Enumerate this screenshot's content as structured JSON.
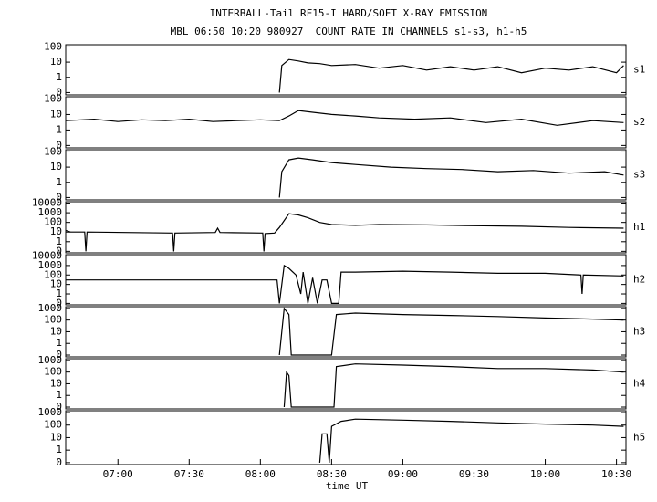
{
  "chart_data": {
    "type": "line",
    "title": "INTERBALL-Tail RF15-I HARD/SOFT X-RAY EMISSION",
    "subtitle": "MBL 06:50 10:20 980927  COUNT RATE IN CHANNELS s1-s3, h1-h5",
    "x_label": "time UT",
    "xlim": [
      398,
      634
    ],
    "xticks": [
      {
        "value": 420,
        "label": "07:00"
      },
      {
        "value": 450,
        "label": "07:30"
      },
      {
        "value": 480,
        "label": "08:00"
      },
      {
        "value": 510,
        "label": "08:30"
      },
      {
        "value": 540,
        "label": "09:00"
      },
      {
        "value": 570,
        "label": "09:30"
      },
      {
        "value": 600,
        "label": "10:00"
      },
      {
        "value": 630,
        "label": "10:30"
      }
    ],
    "log_scale": true,
    "color": "#000000",
    "panels": [
      {
        "name": "s1",
        "ylim": [
          0.07,
          140
        ],
        "yticks": [
          {
            "value": 0.1,
            "label": "0"
          },
          1,
          10,
          100
        ],
        "x": [
          488,
          489,
          492,
          496,
          500,
          505,
          510,
          520,
          530,
          540,
          550,
          560,
          570,
          580,
          590,
          600,
          610,
          620,
          630,
          633
        ],
        "values": [
          0.1,
          6,
          15,
          12,
          9,
          8,
          6,
          7,
          4,
          6,
          3,
          5,
          3,
          5,
          2,
          4,
          3,
          5,
          2,
          6
        ]
      },
      {
        "name": "s2",
        "ylim": [
          0.07,
          140
        ],
        "yticks": [
          {
            "value": 0.1,
            "label": "0"
          },
          1,
          10,
          100
        ],
        "x": [
          398,
          410,
          420,
          430,
          440,
          450,
          460,
          470,
          480,
          488,
          492,
          496,
          502,
          510,
          520,
          530,
          545,
          560,
          575,
          590,
          605,
          620,
          633
        ],
        "values": [
          4,
          5,
          3.5,
          4.5,
          4,
          5,
          3.5,
          4,
          4.5,
          4,
          8,
          18,
          14,
          10,
          8,
          6,
          5,
          6,
          3,
          5,
          2,
          4,
          3
        ]
      },
      {
        "name": "s3",
        "ylim": [
          0.07,
          140
        ],
        "yticks": [
          {
            "value": 0.1,
            "label": "0"
          },
          1,
          10,
          100
        ],
        "x": [
          488,
          489,
          492,
          496,
          502,
          510,
          520,
          535,
          550,
          565,
          580,
          595,
          610,
          625,
          633
        ],
        "values": [
          0.1,
          5,
          30,
          40,
          30,
          20,
          15,
          10,
          8,
          7,
          5,
          6,
          4,
          5,
          3
        ]
      },
      {
        "name": "h1",
        "ylim": [
          0.07,
          14000
        ],
        "yticks": [
          {
            "value": 0.1,
            "label": "0"
          },
          1,
          10,
          100,
          1000,
          10000
        ],
        "x": [
          398,
          400,
          406,
          406.5,
          407,
          443,
          443.5,
          444,
          461,
          462,
          463,
          481,
          481.5,
          482,
          486,
          488,
          492,
          496,
          500,
          505,
          510,
          520,
          530,
          550,
          570,
          590,
          610,
          633
        ],
        "values": [
          15,
          10,
          10,
          0.1,
          10,
          8,
          0.1,
          8,
          9,
          25,
          9,
          8,
          0.1,
          7,
          8,
          30,
          800,
          600,
          300,
          100,
          60,
          50,
          60,
          55,
          45,
          40,
          30,
          25
        ]
      },
      {
        "name": "h2",
        "ylim": [
          0.07,
          14000
        ],
        "yticks": [
          {
            "value": 0.1,
            "label": "0"
          },
          1,
          10,
          100,
          1000,
          10000
        ],
        "x": [
          398,
          487,
          488,
          490,
          492,
          495,
          497,
          498,
          500,
          502,
          504,
          506,
          508,
          510,
          513,
          514,
          520,
          540,
          560,
          580,
          600,
          615,
          615.5,
          616,
          633
        ],
        "values": [
          30,
          30,
          0.1,
          1000,
          500,
          100,
          1,
          200,
          0.1,
          50,
          0.1,
          30,
          30,
          0.1,
          0.1,
          200,
          200,
          250,
          200,
          150,
          150,
          100,
          1,
          100,
          80
        ]
      },
      {
        "name": "h3",
        "ylim": [
          0.07,
          1400
        ],
        "yticks": [
          {
            "value": 0.1,
            "label": "0"
          },
          1,
          10,
          100,
          1000
        ],
        "x": [
          488,
          490,
          492,
          493,
          510,
          512,
          520,
          540,
          560,
          580,
          600,
          620,
          633
        ],
        "values": [
          0.1,
          1000,
          300,
          0.1,
          0.1,
          300,
          400,
          300,
          250,
          200,
          150,
          120,
          100
        ]
      },
      {
        "name": "h4",
        "ylim": [
          0.07,
          1400
        ],
        "yticks": [
          {
            "value": 0.1,
            "label": "0"
          },
          1,
          10,
          100,
          1000
        ],
        "x": [
          490,
          491,
          492,
          493,
          511,
          512,
          520,
          540,
          560,
          580,
          600,
          620,
          633
        ],
        "values": [
          0.1,
          100,
          50,
          0.1,
          0.1,
          300,
          500,
          400,
          300,
          200,
          200,
          150,
          100
        ]
      },
      {
        "name": "h5",
        "ylim": [
          0.07,
          1400
        ],
        "yticks": [
          {
            "value": 0.1,
            "label": "0"
          },
          1,
          10,
          100,
          1000
        ],
        "x": [
          505,
          506,
          508,
          509,
          510,
          514,
          520,
          540,
          560,
          580,
          600,
          620,
          633
        ],
        "values": [
          0.1,
          20,
          20,
          0.1,
          80,
          200,
          300,
          250,
          200,
          150,
          120,
          100,
          80
        ]
      }
    ]
  }
}
